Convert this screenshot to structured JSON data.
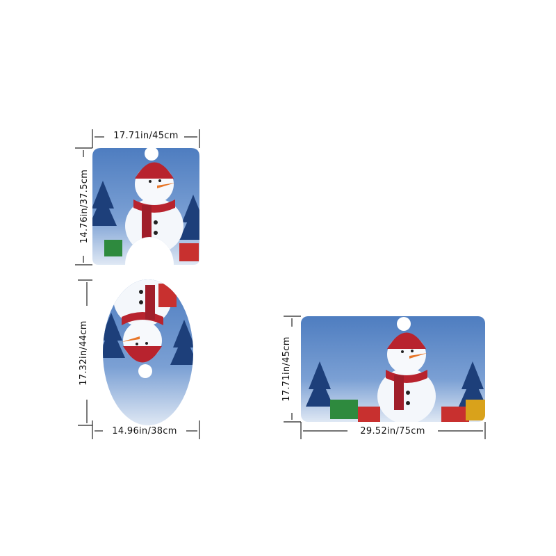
{
  "products": {
    "contour_mat": {
      "width_label": "17.71in/45cm",
      "height_label": "14.76in/37.5cm"
    },
    "lid_cover": {
      "height_label": "17.32in/44cm",
      "width_label": "14.96in/38cm"
    },
    "bath_mat": {
      "height_label": "17.71in/45cm",
      "width_label": "29.52in/75cm"
    }
  },
  "colors": {
    "background_blue": "#5b86c4",
    "scarf_red": "#b8232e",
    "snow": "#f4f7fb",
    "tree": "#1d3f7a"
  }
}
